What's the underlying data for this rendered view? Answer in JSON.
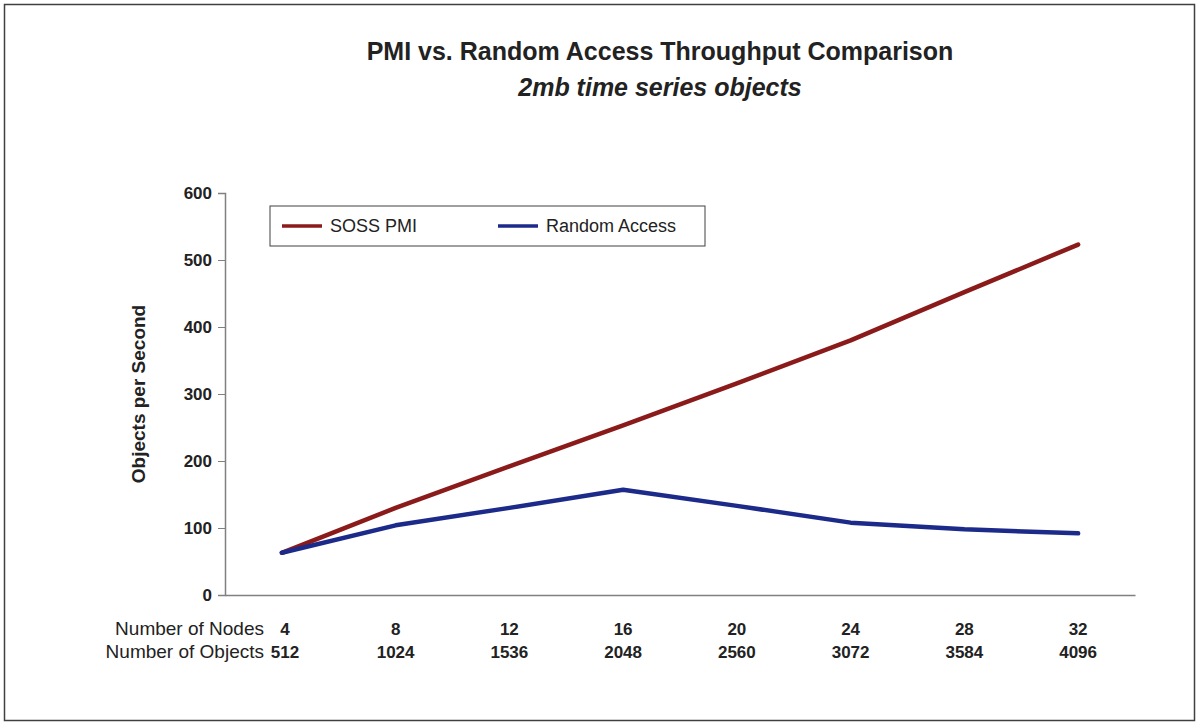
{
  "chart_data": {
    "type": "line",
    "title": "PMI vs. Random Access Throughput Comparison",
    "subtitle": "2mb time series objects",
    "ylabel": "Objects per Second",
    "xlabel": "Number of Nodes",
    "categories": [
      "4",
      "8",
      "12",
      "16",
      "20",
      "24",
      "28",
      "32"
    ],
    "xlabel2": "Number of Objects",
    "categories2": [
      "512",
      "1024",
      "1536",
      "2048",
      "2560",
      "3072",
      "3584",
      "4096"
    ],
    "series": [
      {
        "name": "SOSS PMI",
        "color": "#8b1a1a",
        "values": [
          63,
          130,
          192,
          253,
          316,
          380,
          452,
          523
        ]
      },
      {
        "name": "Random Access",
        "color": "#1c2a8a",
        "values": [
          63,
          104,
          130,
          157,
          133,
          108,
          98,
          92
        ]
      }
    ],
    "ylim": [
      0,
      600
    ],
    "yticks": [
      0,
      100,
      200,
      300,
      400,
      500,
      600
    ],
    "grid": false,
    "legend": "upper left"
  }
}
